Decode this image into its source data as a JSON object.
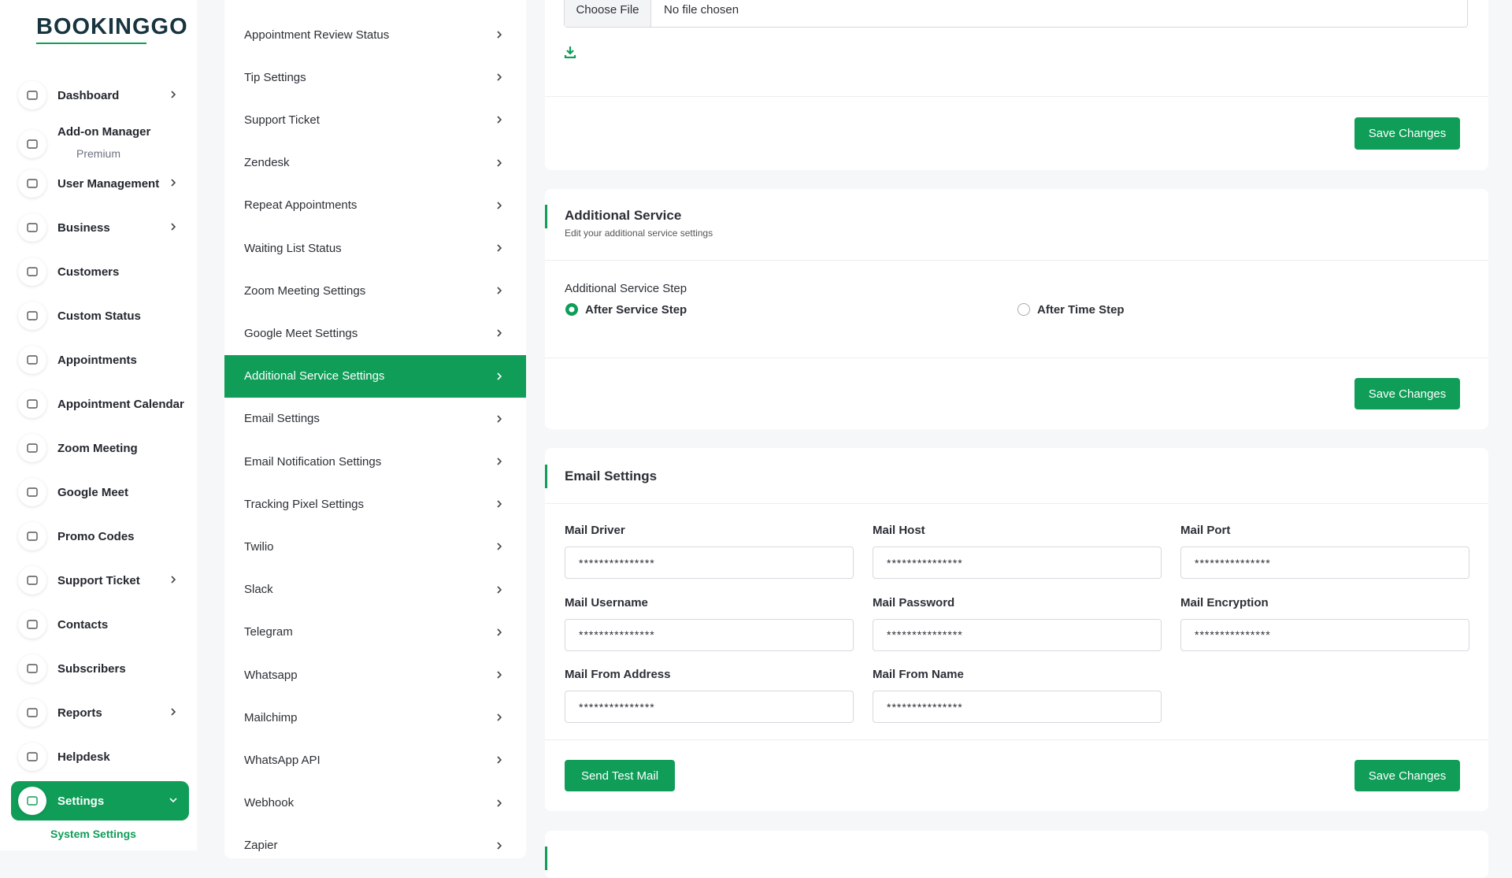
{
  "logo": "BOOKINGGO",
  "sidebar": {
    "items": [
      {
        "label": "Dashboard",
        "arrow": true
      },
      {
        "label": "Add-on Manager",
        "badge": "Premium"
      },
      {
        "label": "User Management",
        "arrow": true
      },
      {
        "label": "Business",
        "arrow": true
      },
      {
        "label": "Customers"
      },
      {
        "label": "Custom Status"
      },
      {
        "label": "Appointments"
      },
      {
        "label": "Appointment Calendar"
      },
      {
        "label": "Zoom Meeting"
      },
      {
        "label": "Google Meet"
      },
      {
        "label": "Promo Codes"
      },
      {
        "label": "Support Ticket",
        "arrow": true
      },
      {
        "label": "Contacts"
      },
      {
        "label": "Subscribers"
      },
      {
        "label": "Reports",
        "arrow": true
      },
      {
        "label": "Helpdesk"
      },
      {
        "label": "Settings",
        "active": true,
        "submenu": [
          "System Settings"
        ]
      }
    ]
  },
  "settings_menu": {
    "active": 8,
    "items": [
      "Appointment Review Status",
      "Tip Settings",
      "Support Ticket",
      "Zendesk",
      "Repeat Appointments",
      "Waiting List Status",
      "Zoom Meeting Settings",
      "Google Meet Settings",
      "Additional Service Settings",
      "Email Settings",
      "Email Notification Settings",
      "Tracking Pixel Settings",
      "Twilio",
      "Slack",
      "Telegram",
      "Whatsapp",
      "Mailchimp",
      "WhatsApp API",
      "Webhook",
      "Zapier"
    ]
  },
  "file_card": {
    "button": "Choose File",
    "status": "No file chosen",
    "save": "Save Changes"
  },
  "additional_service": {
    "title": "Additional Service",
    "subtitle": "Edit your additional service settings",
    "label": "Additional Service Step",
    "options": [
      "After Service Step",
      "After Time Step"
    ],
    "selected": 0,
    "save": "Save Changes"
  },
  "email_settings": {
    "title": "Email Settings",
    "fields": [
      {
        "label": "Mail Driver",
        "value": "***************"
      },
      {
        "label": "Mail Host",
        "value": "***************"
      },
      {
        "label": "Mail Port",
        "value": "***************"
      },
      {
        "label": "Mail Username",
        "value": "***************"
      },
      {
        "label": "Mail Password",
        "value": "***************"
      },
      {
        "label": "Mail Encryption",
        "value": "***************"
      },
      {
        "label": "Mail From Address",
        "value": "***************"
      },
      {
        "label": "Mail From Name",
        "value": "***************"
      }
    ],
    "test": "Send Test Mail",
    "save": "Save Changes"
  }
}
